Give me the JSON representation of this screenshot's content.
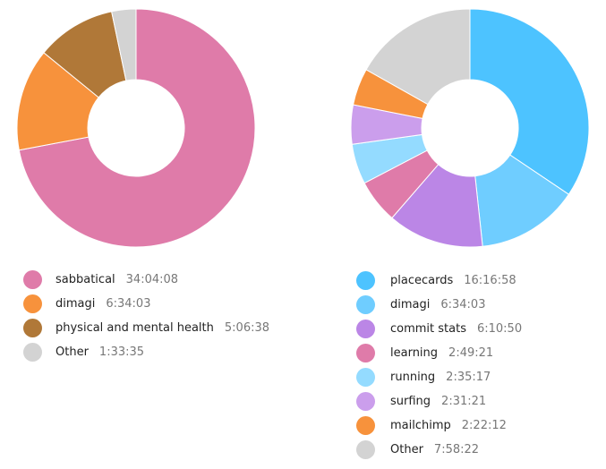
{
  "chart_data": [
    {
      "type": "pie",
      "donut": true,
      "start": "top",
      "direction": "clockwise",
      "series": [
        {
          "name": "sabbatical",
          "value": "34:04:08",
          "color": "#df7ba9"
        },
        {
          "name": "dimagi",
          "value": "6:34:03",
          "color": "#f7923c"
        },
        {
          "name": "physical and mental health",
          "value": "5:06:38",
          "color": "#b07838"
        },
        {
          "name": "Other",
          "value": "1:33:35",
          "color": "#d3d3d3"
        }
      ]
    },
    {
      "type": "pie",
      "donut": true,
      "start": "top",
      "direction": "clockwise",
      "series": [
        {
          "name": "placecards",
          "value": "16:16:58",
          "color": "#4dc3ff"
        },
        {
          "name": "dimagi",
          "value": "6:34:03",
          "color": "#6fcdff"
        },
        {
          "name": "commit stats",
          "value": "6:10:50",
          "color": "#bb86e6"
        },
        {
          "name": "learning",
          "value": "2:49:21",
          "color": "#df7ba9"
        },
        {
          "name": "running",
          "value": "2:35:17",
          "color": "#94dbff"
        },
        {
          "name": "surfing",
          "value": "2:31:21",
          "color": "#cb9eec"
        },
        {
          "name": "mailchimp",
          "value": "2:22:12",
          "color": "#f7923c"
        },
        {
          "name": "Other",
          "value": "7:58:22",
          "color": "#d3d3d3"
        }
      ]
    }
  ]
}
